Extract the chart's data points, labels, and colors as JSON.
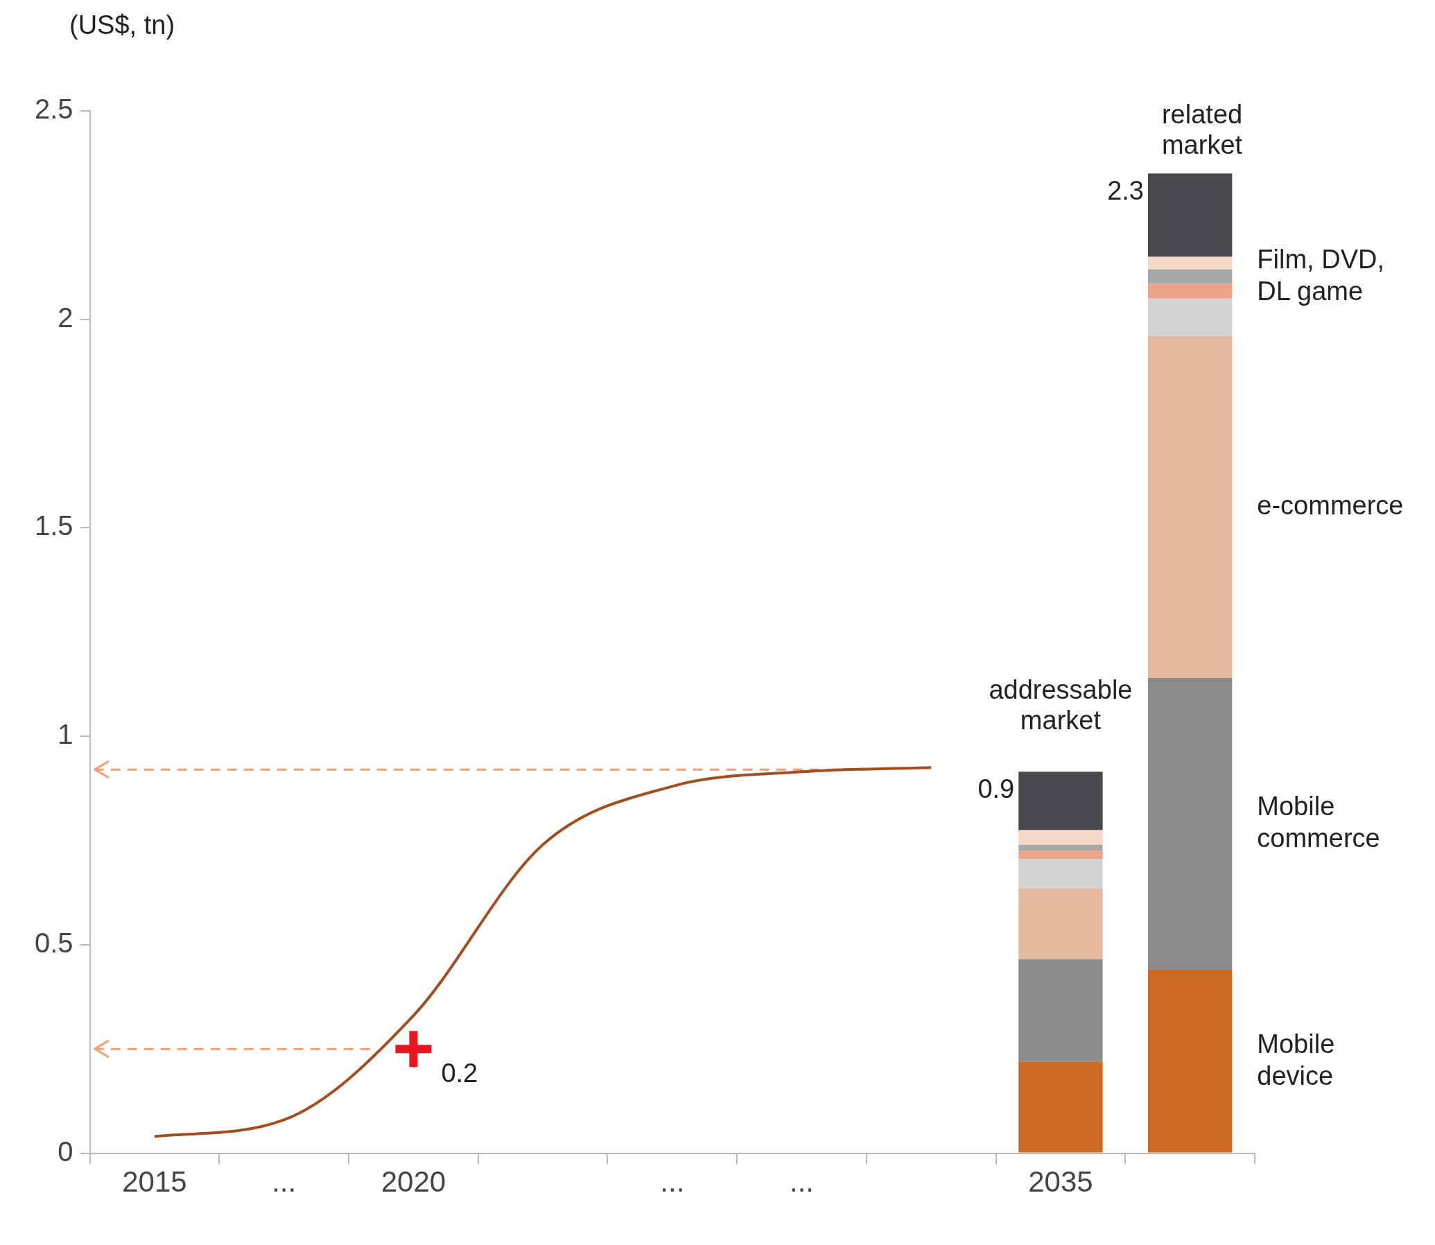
{
  "chart_data": {
    "type": "bar",
    "ylabel": "(US$, tn)",
    "stacked": true,
    "grid": false,
    "legend": false,
    "categories": [
      "2015",
      "...",
      "2020",
      null,
      "...",
      "...",
      null,
      "2035",
      null
    ],
    "ylim": [
      0,
      2.5
    ],
    "yticks": [
      0,
      0.5,
      1,
      1.5,
      2,
      2.5
    ],
    "series": [
      {
        "name": "Mobile device",
        "color": "#cc6a24",
        "values": [
          null,
          null,
          null,
          null,
          null,
          null,
          null,
          0.22,
          0.44
        ]
      },
      {
        "name": "Mobile commerce",
        "color": "#8c8c8c",
        "values": [
          null,
          null,
          null,
          null,
          null,
          null,
          null,
          0.245,
          0.7
        ]
      },
      {
        "name": "e-commerce",
        "color": "#e3b9a0",
        "values": [
          null,
          null,
          null,
          null,
          null,
          null,
          null,
          0.17,
          0.82
        ]
      },
      {
        "color": "#d3d3d3",
        "values": [
          null,
          null,
          null,
          null,
          null,
          null,
          null,
          0.07,
          0.09
        ]
      },
      {
        "color": "#eea48a",
        "values": [
          null,
          null,
          null,
          null,
          null,
          null,
          null,
          0.02,
          0.035
        ]
      },
      {
        "name": "Film, DVD, DL game",
        "color": "#a8a8a8",
        "values": [
          null,
          null,
          null,
          null,
          null,
          null,
          null,
          0.015,
          0.035
        ]
      },
      {
        "color": "#f6d9c8",
        "values": [
          null,
          null,
          null,
          null,
          null,
          null,
          null,
          0.035,
          0.03
        ]
      },
      {
        "color": "#4a4a4e",
        "values": [
          null,
          null,
          null,
          null,
          null,
          null,
          null,
          0.14,
          0.2
        ]
      },
      {
        "type": "line",
        "color": "#a0501e",
        "marker": "none",
        "line_style": "solid",
        "values": [
          0.04,
          0.08,
          0.33,
          0.74,
          0.88,
          0.915,
          0.925,
          null,
          null
        ]
      },
      {
        "type": "scatter",
        "color": "#e8141e",
        "marker": "cross",
        "values": [
          null,
          null,
          0.25,
          null,
          null,
          null,
          null,
          null,
          null
        ]
      }
    ],
    "totals": [
      null,
      null,
      null,
      null,
      null,
      null,
      null,
      "0.9",
      "2.3"
    ],
    "ref_lines": [
      {
        "axis": "y",
        "value": 0.92,
        "color": "#f0a070",
        "line_style": "dashed"
      },
      {
        "axis": "y",
        "value": 0.25,
        "color": "#f0a070",
        "line_style": "dashed"
      }
    ],
    "annotations": [
      {
        "text": "0.2",
        "x": "2020",
        "y": 0.25
      },
      {
        "text": "addressable market",
        "x": "2035",
        "y": 0.92
      },
      "related market"
    ]
  }
}
